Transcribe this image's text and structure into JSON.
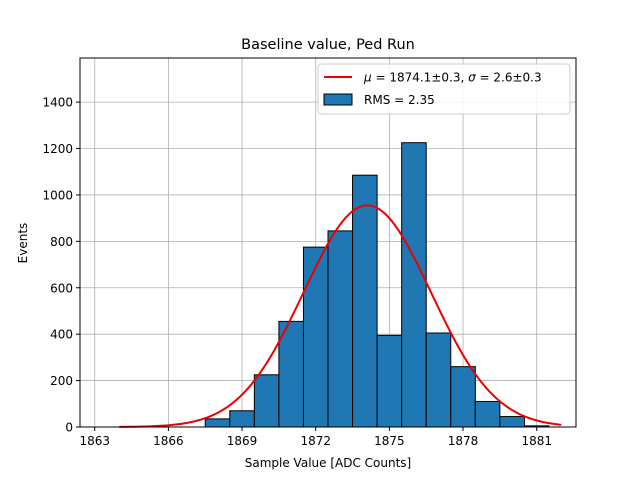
{
  "chart_data": {
    "type": "bar",
    "title": "Baseline value, Ped Run",
    "xlabel": "Sample Value [ADC Counts]",
    "ylabel": "Events",
    "xlim": [
      1862.4,
      1882.6
    ],
    "ylim": [
      0,
      1590
    ],
    "xticks": [
      1863,
      1866,
      1869,
      1872,
      1875,
      1878,
      1881
    ],
    "yticks": [
      0,
      200,
      400,
      600,
      800,
      1000,
      1200,
      1400
    ],
    "grid": true,
    "legend_position": "top-right",
    "bar_color": "#1f77b4",
    "fit_color": "#ee0000",
    "bins": [
      {
        "x0": 1867.5,
        "x1": 1868.5,
        "value": 35
      },
      {
        "x0": 1868.5,
        "x1": 1869.5,
        "value": 70
      },
      {
        "x0": 1869.5,
        "x1": 1870.5,
        "value": 225
      },
      {
        "x0": 1870.5,
        "x1": 1871.5,
        "value": 455
      },
      {
        "x0": 1871.5,
        "x1": 1872.5,
        "value": 775
      },
      {
        "x0": 1872.5,
        "x1": 1873.5,
        "value": 845
      },
      {
        "x0": 1873.5,
        "x1": 1874.5,
        "value": 1085
      },
      {
        "x0": 1874.5,
        "x1": 1875.5,
        "value": 395
      },
      {
        "x0": 1875.5,
        "x1": 1876.5,
        "value": 1225
      },
      {
        "x0": 1876.5,
        "x1": 1877.5,
        "value": 405
      },
      {
        "x0": 1877.5,
        "x1": 1878.5,
        "value": 260
      },
      {
        "x0": 1878.5,
        "x1": 1879.5,
        "value": 110
      },
      {
        "x0": 1879.5,
        "x1": 1880.5,
        "value": 45
      },
      {
        "x0": 1880.5,
        "x1": 1881.5,
        "value": 5
      }
    ],
    "fit": {
      "mu": 1874.1,
      "sigma": 2.6,
      "amplitude": 955,
      "x_start": 1864,
      "x_end": 1882
    },
    "legend": {
      "fit_label_mu": "μ",
      "fit_label_rest": " = 1874.1±0.3, ",
      "fit_label_sigma": "σ",
      "fit_label_end": " = 2.6±0.3",
      "hist_label": "RMS = 2.35"
    }
  }
}
